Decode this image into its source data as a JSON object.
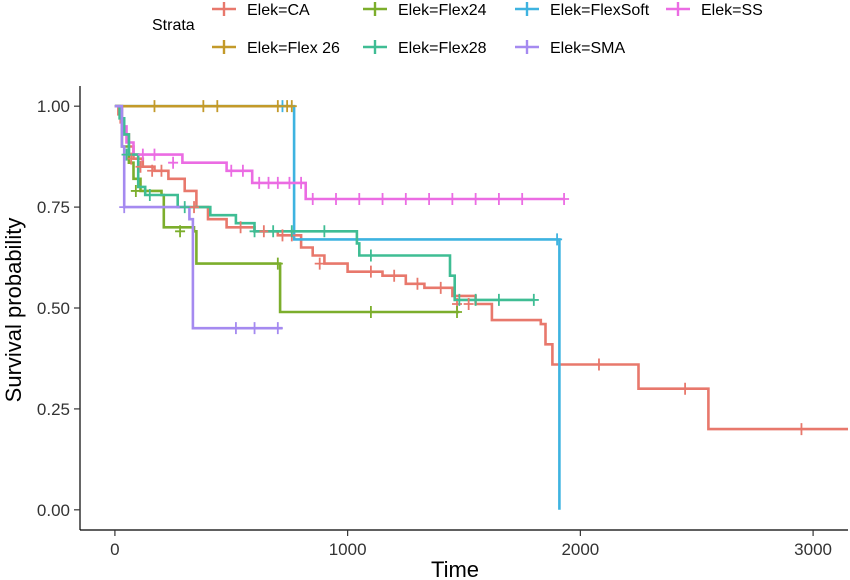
{
  "chart_data": {
    "type": "line",
    "step": true,
    "title": "",
    "xlabel": "Time",
    "ylabel": "Survival probability",
    "xlim": [
      -150,
      3150
    ],
    "ylim": [
      -0.05,
      1.05
    ],
    "x_ticks": [
      0,
      1000,
      2000,
      3000
    ],
    "x_tick_labels": [
      "0",
      "1000",
      "2000",
      "3000"
    ],
    "y_ticks": [
      0,
      0.25,
      0.5,
      0.75,
      1.0
    ],
    "y_tick_labels": [
      "0.00",
      "0.25",
      "0.50",
      "0.75",
      "1.00"
    ],
    "grid": false,
    "legend": {
      "title": "Strata",
      "position": "top",
      "entries": [
        {
          "label": "Elek=CA",
          "color": "#e8786c"
        },
        {
          "label": "Elek=Flex24",
          "color": "#7cae2c"
        },
        {
          "label": "Elek=FlexSoft",
          "color": "#3eb3e0"
        },
        {
          "label": "Elek=SS",
          "color": "#eb6ce3"
        },
        {
          "label": "Elek=Flex 26",
          "color": "#c39a2a"
        },
        {
          "label": "Elek=Flex28",
          "color": "#3fbd94"
        },
        {
          "label": "Elek=SMA",
          "color": "#a58af0"
        }
      ]
    },
    "series": [
      {
        "name": "Elek=CA",
        "color": "#e8786c",
        "points": [
          [
            0,
            1.0
          ],
          [
            15,
            0.98
          ],
          [
            25,
            0.96
          ],
          [
            40,
            0.93
          ],
          [
            60,
            0.9
          ],
          [
            80,
            0.87
          ],
          [
            120,
            0.85
          ],
          [
            170,
            0.84
          ],
          [
            230,
            0.82
          ],
          [
            300,
            0.79
          ],
          [
            350,
            0.75
          ],
          [
            400,
            0.72
          ],
          [
            480,
            0.7
          ],
          [
            600,
            0.69
          ],
          [
            700,
            0.68
          ],
          [
            800,
            0.65
          ],
          [
            850,
            0.63
          ],
          [
            900,
            0.61
          ],
          [
            1000,
            0.59
          ],
          [
            1150,
            0.58
          ],
          [
            1250,
            0.56
          ],
          [
            1330,
            0.55
          ],
          [
            1450,
            0.53
          ],
          [
            1550,
            0.51
          ],
          [
            1620,
            0.47
          ],
          [
            1830,
            0.46
          ],
          [
            1850,
            0.41
          ],
          [
            1880,
            0.36
          ],
          [
            2250,
            0.3
          ],
          [
            2550,
            0.2
          ],
          [
            3150,
            0.2
          ]
        ],
        "censors": [
          [
            70,
            0.87
          ],
          [
            110,
            0.85
          ],
          [
            160,
            0.84
          ],
          [
            200,
            0.84
          ],
          [
            340,
            0.75
          ],
          [
            540,
            0.7
          ],
          [
            640,
            0.69
          ],
          [
            720,
            0.68
          ],
          [
            760,
            0.68
          ],
          [
            880,
            0.61
          ],
          [
            1100,
            0.59
          ],
          [
            1200,
            0.58
          ],
          [
            1300,
            0.56
          ],
          [
            1400,
            0.55
          ],
          [
            1470,
            0.51
          ],
          [
            1520,
            0.51
          ],
          [
            2080,
            0.36
          ],
          [
            2450,
            0.3
          ],
          [
            2950,
            0.2
          ]
        ]
      },
      {
        "name": "Elek=Flex24",
        "color": "#7cae2c",
        "points": [
          [
            0,
            1.0
          ],
          [
            30,
            0.9
          ],
          [
            60,
            0.86
          ],
          [
            80,
            0.82
          ],
          [
            110,
            0.79
          ],
          [
            200,
            0.78
          ],
          [
            210,
            0.7
          ],
          [
            340,
            0.69
          ],
          [
            350,
            0.61
          ],
          [
            700,
            0.61
          ],
          [
            710,
            0.49
          ],
          [
            1480,
            0.49
          ]
        ],
        "censors": [
          [
            90,
            0.79
          ],
          [
            280,
            0.69
          ],
          [
            700,
            0.61
          ],
          [
            1100,
            0.49
          ],
          [
            1470,
            0.49
          ]
        ]
      },
      {
        "name": "Elek=FlexSoft",
        "color": "#3eb3e0",
        "points": [
          [
            0,
            1.0
          ],
          [
            760,
            1.0
          ],
          [
            770,
            0.67
          ],
          [
            1910,
            0.67
          ],
          [
            1910,
            0.0
          ]
        ],
        "censors": [
          [
            720,
            1.0
          ],
          [
            1900,
            0.67
          ]
        ]
      },
      {
        "name": "Elek=SS",
        "color": "#eb6ce3",
        "points": [
          [
            0,
            1.0
          ],
          [
            30,
            0.95
          ],
          [
            50,
            0.91
          ],
          [
            80,
            0.88
          ],
          [
            290,
            0.86
          ],
          [
            480,
            0.84
          ],
          [
            590,
            0.81
          ],
          [
            820,
            0.77
          ],
          [
            1930,
            0.77
          ]
        ],
        "censors": [
          [
            120,
            0.88
          ],
          [
            170,
            0.88
          ],
          [
            250,
            0.86
          ],
          [
            500,
            0.84
          ],
          [
            550,
            0.84
          ],
          [
            620,
            0.81
          ],
          [
            660,
            0.81
          ],
          [
            700,
            0.81
          ],
          [
            750,
            0.81
          ],
          [
            800,
            0.81
          ],
          [
            850,
            0.77
          ],
          [
            950,
            0.77
          ],
          [
            1050,
            0.77
          ],
          [
            1150,
            0.77
          ],
          [
            1250,
            0.77
          ],
          [
            1350,
            0.77
          ],
          [
            1450,
            0.77
          ],
          [
            1550,
            0.77
          ],
          [
            1650,
            0.77
          ],
          [
            1750,
            0.77
          ],
          [
            1930,
            0.77
          ]
        ]
      },
      {
        "name": "Elek=Flex 26",
        "color": "#c39a2a",
        "points": [
          [
            0,
            1.0
          ],
          [
            760,
            1.0
          ]
        ],
        "censors": [
          [
            170,
            1.0
          ],
          [
            380,
            1.0
          ],
          [
            440,
            1.0
          ],
          [
            700,
            1.0
          ],
          [
            740,
            1.0
          ],
          [
            760,
            1.0
          ]
        ]
      },
      {
        "name": "Elek=Flex28",
        "color": "#3fbd94",
        "points": [
          [
            0,
            1.0
          ],
          [
            20,
            0.97
          ],
          [
            40,
            0.93
          ],
          [
            60,
            0.88
          ],
          [
            100,
            0.8
          ],
          [
            130,
            0.78
          ],
          [
            270,
            0.75
          ],
          [
            410,
            0.73
          ],
          [
            520,
            0.71
          ],
          [
            600,
            0.69
          ],
          [
            1040,
            0.66
          ],
          [
            1050,
            0.63
          ],
          [
            1440,
            0.58
          ],
          [
            1460,
            0.52
          ],
          [
            1800,
            0.52
          ]
        ],
        "censors": [
          [
            50,
            0.88
          ],
          [
            150,
            0.78
          ],
          [
            300,
            0.75
          ],
          [
            600,
            0.69
          ],
          [
            680,
            0.69
          ],
          [
            760,
            0.69
          ],
          [
            900,
            0.69
          ],
          [
            1100,
            0.63
          ],
          [
            1480,
            0.52
          ],
          [
            1550,
            0.52
          ],
          [
            1650,
            0.52
          ],
          [
            1800,
            0.52
          ]
        ]
      },
      {
        "name": "Elek=SMA",
        "color": "#a58af0",
        "points": [
          [
            0,
            1.0
          ],
          [
            30,
            0.9
          ],
          [
            40,
            0.75
          ],
          [
            320,
            0.72
          ],
          [
            335,
            0.45
          ],
          [
            720,
            0.45
          ]
        ],
        "censors": [
          [
            40,
            0.75
          ],
          [
            520,
            0.45
          ],
          [
            600,
            0.45
          ],
          [
            700,
            0.45
          ]
        ]
      }
    ]
  }
}
